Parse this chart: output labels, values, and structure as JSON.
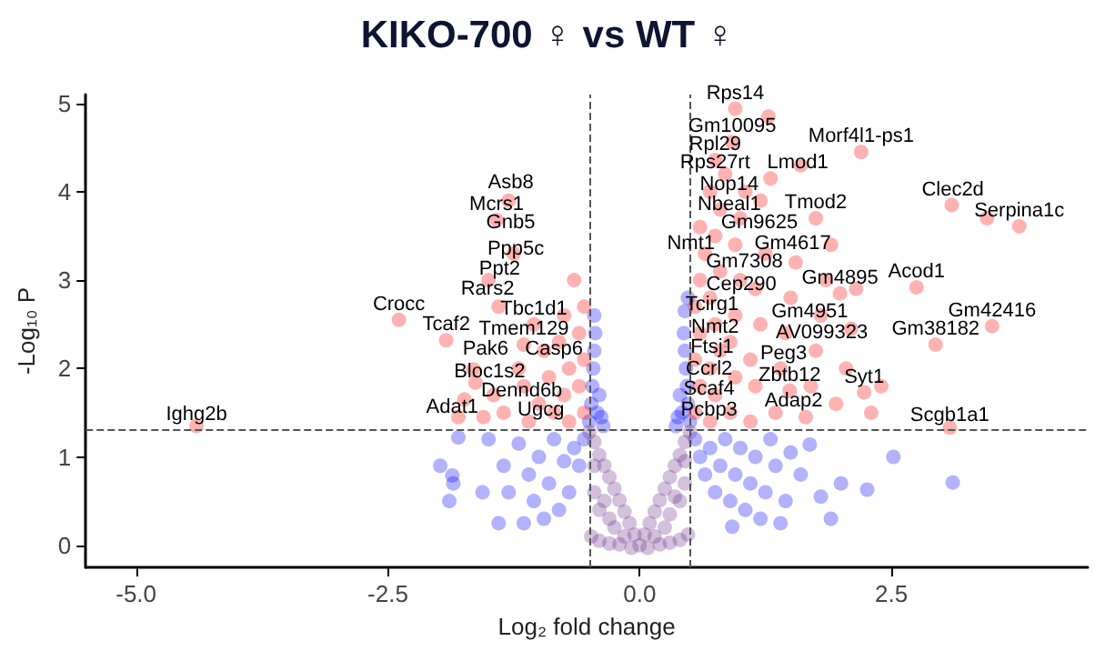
{
  "chart_data": {
    "type": "scatter",
    "title": "KIKO-700 ♀ vs WT ♀",
    "xlabel": "Log₂ fold change",
    "ylabel": "-Log₁₀ P",
    "xlim": [
      -5.5,
      4.45
    ],
    "ylim": [
      -0.25,
      5.1
    ],
    "xticks": [
      {
        "value": -5,
        "label": "-5.0"
      },
      {
        "value": -2.5,
        "label": "-2.5"
      },
      {
        "value": 0,
        "label": "0.0"
      },
      {
        "value": 2.5,
        "label": "2.5"
      }
    ],
    "yticks": [
      0,
      1,
      2,
      3,
      4,
      5
    ],
    "grid": false,
    "marker": "circle",
    "ref_lines": [
      {
        "axis": "x",
        "value": -0.5,
        "line_style": "dashed"
      },
      {
        "axis": "x",
        "value": 0.5,
        "line_style": "dashed"
      },
      {
        "axis": "y",
        "value": 1.3,
        "line_style": "dashed"
      }
    ],
    "series": [
      {
        "color": "#0000ff",
        "x": [
          -0.5,
          -0.48,
          -0.47,
          -0.46,
          -0.45,
          -0.44,
          -0.45,
          -0.42,
          -0.4,
          -0.38,
          -0.36,
          0.5,
          0.48,
          0.47,
          0.46,
          0.45,
          0.44,
          0.45,
          0.42,
          0.4,
          0.38,
          0.36,
          0.48,
          0.55,
          0.6,
          0.65,
          0.7,
          0.75,
          0.8,
          0.85,
          0.9,
          0.95,
          1.0,
          1.05,
          1.1,
          1.15,
          1.2,
          1.25,
          1.3,
          1.35,
          1.4,
          1.45,
          1.5,
          1.6,
          1.69,
          1.8,
          1.9,
          2.0,
          2.26,
          2.52,
          3.11,
          0.92,
          -0.55,
          -0.6,
          -0.65,
          -0.7,
          -0.75,
          -0.8,
          -0.85,
          -0.9,
          -0.95,
          -1.0,
          -1.05,
          -1.1,
          -1.15,
          -1.2,
          -1.3,
          -1.35,
          -1.4,
          -1.5,
          -1.56,
          -1.8,
          -1.85,
          -1.86,
          -1.89,
          -1.98
        ],
        "values": [
          1.4,
          1.6,
          1.8,
          2.0,
          2.2,
          2.4,
          2.6,
          1.5,
          1.7,
          1.45,
          1.35,
          1.4,
          1.6,
          1.8,
          2.0,
          2.2,
          2.4,
          2.65,
          1.5,
          1.7,
          1.45,
          1.35,
          2.8,
          1.2,
          1.0,
          0.8,
          1.1,
          0.6,
          0.9,
          1.2,
          0.5,
          0.8,
          1.1,
          0.4,
          0.7,
          1.0,
          0.3,
          0.6,
          1.2,
          0.9,
          0.25,
          0.5,
          1.05,
          0.8,
          1.14,
          0.55,
          0.3,
          0.7,
          0.63,
          1.0,
          0.71,
          0.21,
          1.2,
          0.9,
          1.1,
          0.6,
          0.95,
          0.4,
          1.2,
          0.7,
          0.3,
          1.0,
          0.5,
          0.8,
          0.25,
          1.15,
          0.6,
          0.9,
          0.25,
          1.2,
          0.6,
          1.22,
          0.7,
          0.79,
          0.5,
          0.9
        ]
      },
      {
        "color": "#ff0000",
        "x": [
          0.95,
          0.92,
          0.75,
          2.2,
          1.75,
          1.99,
          1.49,
          2.23,
          3.77,
          3.5,
          2.94,
          -1.42,
          -1.15,
          0.55,
          0.6,
          0.55,
          0.6,
          0.55,
          0.6,
          0.65,
          0.6,
          0.7,
          0.75,
          0.7,
          0.8,
          0.75,
          0.7,
          0.8,
          0.75,
          0.8,
          0.7,
          0.85,
          0.9,
          0.95,
          0.9,
          0.95,
          1.0,
          0.95,
          1.0,
          1.05,
          1.1,
          1.15,
          1.1,
          1.2,
          1.15,
          1.25,
          1.2,
          1.3,
          1.28,
          1.35,
          1.4,
          1.45,
          1.5,
          1.55,
          1.6,
          1.65,
          1.7,
          1.75,
          1.8,
          1.85,
          1.9,
          1.95,
          2.05,
          2.1,
          2.15,
          2.3,
          2.4,
          2.75,
          3.1,
          3.45,
          3.08,
          -0.55,
          -0.6,
          -0.55,
          -0.6,
          -0.55,
          -0.65,
          -0.7,
          -0.75,
          -0.7,
          -0.8,
          -0.75,
          -0.85,
          -0.9,
          -0.95,
          -1.0,
          -1.05,
          -1.1,
          -1.15,
          -1.2,
          -1.25,
          -1.3,
          -1.35,
          -1.4,
          -1.45,
          -1.5,
          -1.55,
          -1.63,
          -1.65,
          -1.74,
          -1.8,
          -1.92,
          -2.39,
          -4.4
        ],
        "values": [
          4.94,
          4.56,
          4.36,
          4.45,
          3.7,
          2.85,
          1.75,
          1.73,
          3.61,
          2.48,
          2.27,
          3.68,
          2.27,
          1.5,
          1.8,
          2.1,
          2.4,
          2.7,
          3.0,
          3.3,
          3.6,
          1.4,
          1.7,
          2.0,
          2.2,
          2.5,
          2.8,
          3.1,
          3.5,
          3.8,
          4.0,
          4.2,
          1.5,
          1.9,
          2.3,
          2.6,
          3.0,
          3.4,
          3.7,
          4.0,
          1.4,
          1.8,
          2.1,
          2.5,
          2.9,
          3.3,
          3.9,
          4.15,
          4.85,
          1.5,
          2.0,
          2.4,
          2.8,
          3.2,
          4.3,
          1.45,
          1.8,
          2.2,
          2.6,
          3.0,
          3.4,
          1.6,
          2.0,
          2.45,
          2.9,
          1.5,
          1.8,
          2.92,
          3.85,
          3.7,
          1.33,
          1.5,
          1.8,
          2.1,
          2.4,
          2.7,
          3.0,
          1.4,
          1.7,
          2.0,
          2.3,
          2.6,
          1.5,
          1.9,
          2.2,
          1.6,
          2.5,
          1.4,
          1.8,
          2.0,
          3.3,
          3.9,
          1.5,
          2.7,
          1.7,
          3.0,
          1.45,
          1.84,
          1.99,
          1.65,
          1.45,
          2.32,
          2.55,
          1.35
        ]
      },
      {
        "color": "#6a2d8a",
        "x": [
          -0.5,
          -0.45,
          -0.4,
          -0.35,
          -0.3,
          -0.25,
          -0.2,
          -0.15,
          -0.1,
          -0.05,
          0,
          0.05,
          0.1,
          0.15,
          0.2,
          0.25,
          0.3,
          0.35,
          0.4,
          0.45,
          0.5,
          -0.48,
          -0.4,
          -0.3,
          -0.2,
          0.2,
          0.3,
          0.4,
          0.48,
          -0.45,
          -0.4,
          -0.35,
          -0.3,
          -0.25,
          -0.15,
          0.15,
          0.25,
          0.3,
          0.35,
          0.4,
          0.45,
          -0.45,
          0.45,
          -0.08,
          0.08
        ],
        "values": [
          1.28,
          1.17,
          1.02,
          0.9,
          0.77,
          0.64,
          0.51,
          0.38,
          0.25,
          0.12,
          0,
          0.12,
          0.25,
          0.38,
          0.51,
          0.64,
          0.77,
          0.9,
          1.02,
          1.17,
          1.28,
          0.1,
          0.05,
          0.02,
          0.01,
          0.01,
          0.03,
          0.06,
          0.12,
          0.6,
          0.4,
          0.5,
          0.3,
          0.2,
          0.1,
          0.1,
          0.2,
          0.35,
          0.55,
          0.5,
          0.7,
          0.9,
          0.95,
          -0.03,
          -0.03
        ]
      }
    ],
    "annotations": [
      {
        "text": "Rps14",
        "x": 0.95,
        "y": 4.94
      },
      {
        "text": "Gm10095",
        "x": 0.92,
        "y": 4.56
      },
      {
        "text": "Rpl29",
        "x": 0.75,
        "y": 4.36
      },
      {
        "text": "Rps27rt",
        "x": 0.75,
        "y": 4.15
      },
      {
        "text": "Lmod1",
        "x": 1.57,
        "y": 4.15
      },
      {
        "text": "Morf4l1-ps1",
        "x": 2.2,
        "y": 4.45
      },
      {
        "text": "Nop14",
        "x": 0.89,
        "y": 3.91
      },
      {
        "text": "Nbeal1",
        "x": 0.89,
        "y": 3.68
      },
      {
        "text": "Tmod2",
        "x": 1.75,
        "y": 3.7
      },
      {
        "text": "Gm9625",
        "x": 1.19,
        "y": 3.47
      },
      {
        "text": "Nmt1",
        "x": 0.51,
        "y": 3.24
      },
      {
        "text": "Gm4617",
        "x": 1.52,
        "y": 3.24
      },
      {
        "text": "Gm7308",
        "x": 1.04,
        "y": 3.03
      },
      {
        "text": "Cep290",
        "x": 1.01,
        "y": 2.77
      },
      {
        "text": "Gm4895",
        "x": 1.99,
        "y": 2.85
      },
      {
        "text": "Tcirg1",
        "x": 0.72,
        "y": 2.55
      },
      {
        "text": "Gm4951",
        "x": 1.69,
        "y": 2.47
      },
      {
        "text": "Nmt2",
        "x": 0.75,
        "y": 2.29
      },
      {
        "text": "AV099323",
        "x": 1.81,
        "y": 2.23
      },
      {
        "text": "Ftsj1",
        "x": 0.72,
        "y": 2.06
      },
      {
        "text": "Peg3",
        "x": 1.43,
        "y": 1.99
      },
      {
        "text": "Ccrl2",
        "x": 0.69,
        "y": 1.82
      },
      {
        "text": "Zbtb12",
        "x": 1.49,
        "y": 1.75
      },
      {
        "text": "Syt1",
        "x": 2.23,
        "y": 1.73
      },
      {
        "text": "Scaf4",
        "x": 0.69,
        "y": 1.59
      },
      {
        "text": "Adap2",
        "x": 1.53,
        "y": 1.46
      },
      {
        "text": "Pcbp3",
        "x": 0.69,
        "y": 1.36
      },
      {
        "text": "Clec2d",
        "x": 3.11,
        "y": 3.84
      },
      {
        "text": "Serpina1c",
        "x": 3.77,
        "y": 3.61
      },
      {
        "text": "Acod1",
        "x": 2.75,
        "y": 2.92
      },
      {
        "text": "Gm42416",
        "x": 3.5,
        "y": 2.48
      },
      {
        "text": "Gm38182",
        "x": 2.94,
        "y": 2.27
      },
      {
        "text": "Scgb1a1",
        "x": 3.08,
        "y": 1.29
      },
      {
        "text": "Asb8",
        "x": -1.28,
        "y": 3.93
      },
      {
        "text": "Mcrs1",
        "x": -1.42,
        "y": 3.68
      },
      {
        "text": "Gnb5",
        "x": -1.28,
        "y": 3.47
      },
      {
        "text": "Ppp5c",
        "x": -1.23,
        "y": 3.18
      },
      {
        "text": "Ppt2",
        "x": -1.39,
        "y": 2.95
      },
      {
        "text": "Rars2",
        "x": -1.51,
        "y": 2.72
      },
      {
        "text": "Tbc1d1",
        "x": -1.05,
        "y": 2.5
      },
      {
        "text": "Tmem129",
        "x": -1.15,
        "y": 2.27
      },
      {
        "text": "Pak6",
        "x": -1.53,
        "y": 2.04
      },
      {
        "text": "Casp6",
        "x": -0.85,
        "y": 2.04
      },
      {
        "text": "Bloc1s2",
        "x": -1.49,
        "y": 1.79
      },
      {
        "text": "Dennd6b",
        "x": -1.17,
        "y": 1.57
      },
      {
        "text": "Ugcg",
        "x": -0.98,
        "y": 1.36
      },
      {
        "text": "Crocc",
        "x": -2.39,
        "y": 2.55
      },
      {
        "text": "Tcaf2",
        "x": -1.92,
        "y": 2.32
      },
      {
        "text": "Adat1",
        "x": -1.86,
        "y": 1.39
      },
      {
        "text": "Ighg2b",
        "x": -4.4,
        "y": 1.3
      }
    ]
  }
}
